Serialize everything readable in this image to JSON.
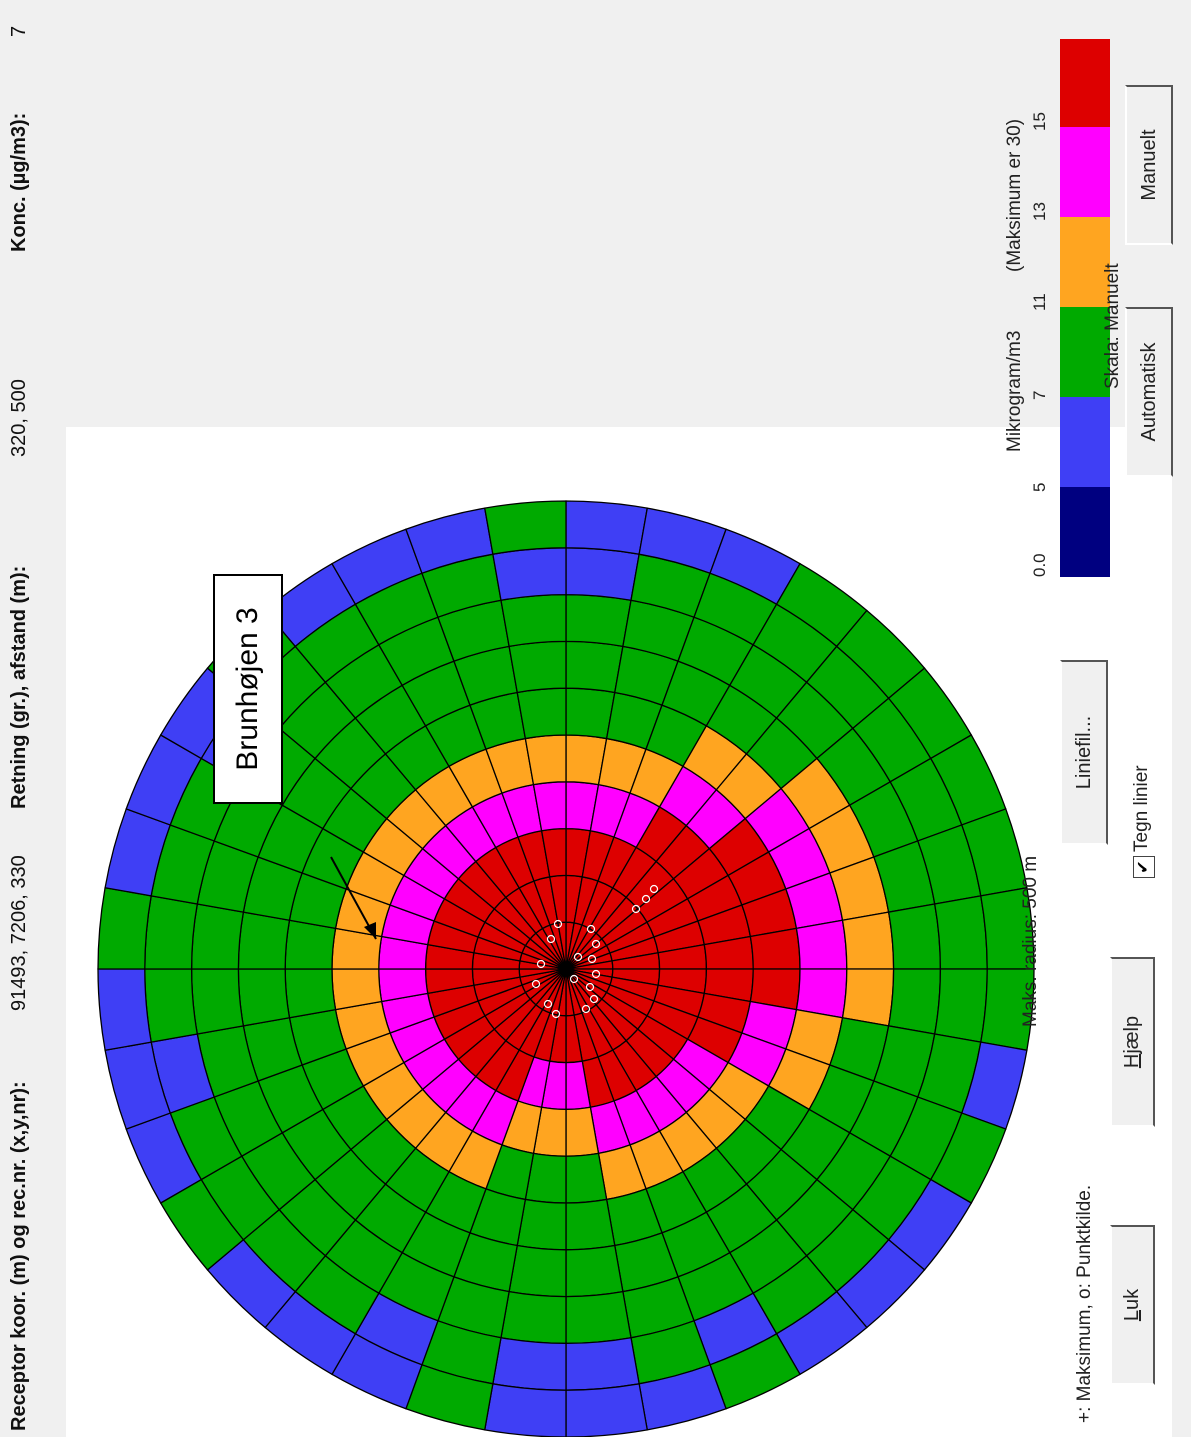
{
  "window": {
    "receptor_label": "Receptor koor. (m) og rec.nr. (x,y,nr):",
    "receptor_value": "91493, 7206, 330",
    "direction_label": "Retning (gr.), afstand (m):",
    "direction_value": "320, 500",
    "conc_label": "Konc. (µg/m3):",
    "conc_value": "7"
  },
  "plot": {
    "callout_text": "Brunhøjen 3",
    "grid_color": "#000000"
  },
  "footer": {
    "legend_text": "+: Maksimum, o: Punktkilde.",
    "radius_text": "Maks. radius:  500 m",
    "close_label_prefix": "",
    "close_label_underlined": "L",
    "close_label_rest": "uk",
    "help_label_underlined": "H",
    "help_label_rest": "jælp",
    "linefile_label": "Liniefil...",
    "draw_lines_label": "Tegn linier",
    "draw_lines_checked": "✔"
  },
  "scale": {
    "unit_text": "Mikrogram/m3",
    "max_text": "(Maksimum er 30)",
    "scale_text": "Skala: Manuelt",
    "automatic_label": "Automatisk",
    "manual_label": "Manuelt",
    "ticks": [
      "0.0",
      "5",
      "7",
      "11",
      "13",
      "15"
    ],
    "colors": [
      "#000080",
      "#3f3ff5",
      "#00aa00",
      "#ffa520",
      "#ff00ff",
      "#dd0000"
    ]
  }
}
